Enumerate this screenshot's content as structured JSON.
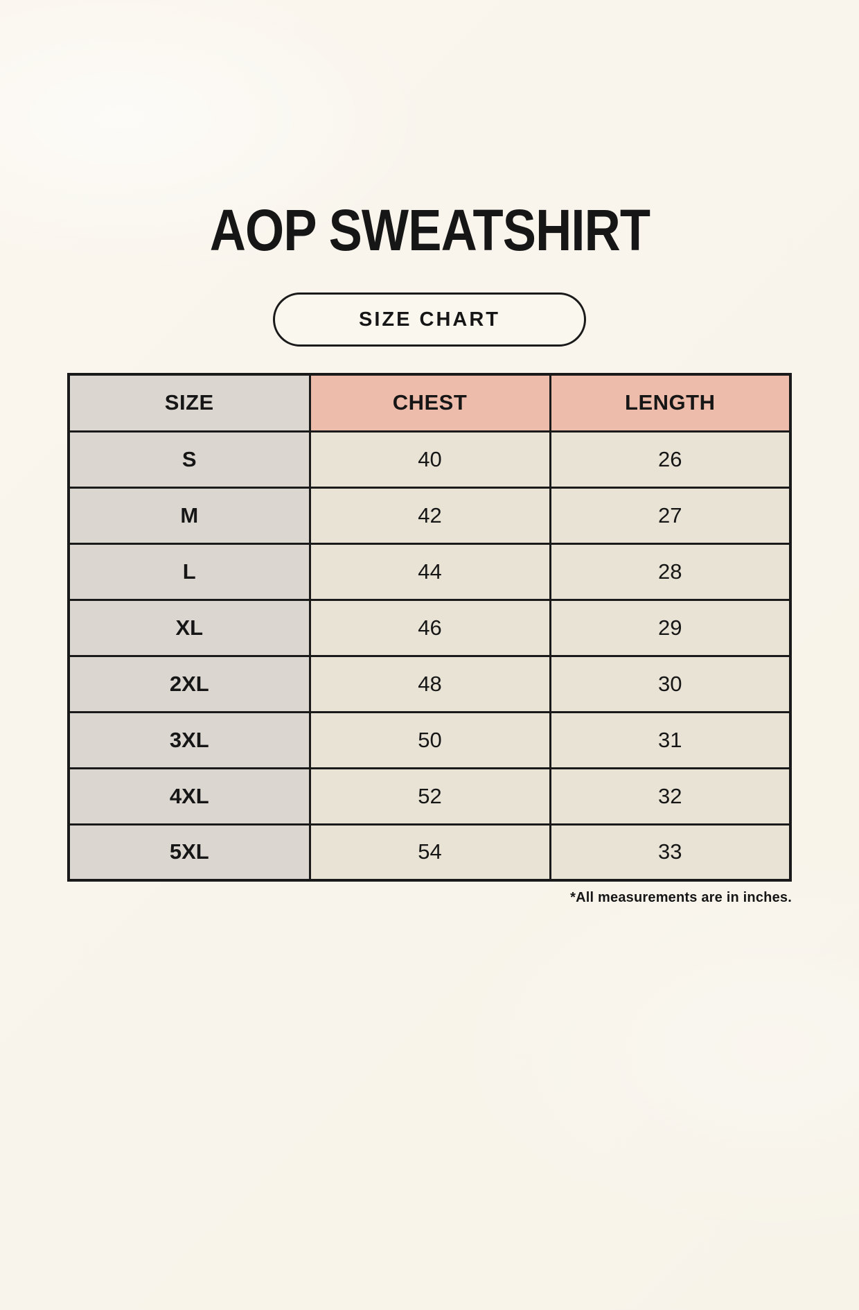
{
  "page": {
    "title": "AOP SWEATSHIRT",
    "badge_label": "SIZE CHART",
    "footnote": "*All measurements are in inches."
  },
  "chart_data": {
    "type": "table",
    "title": "AOP SWEATSHIRT",
    "subtitle": "SIZE CHART",
    "columns": [
      "SIZE",
      "CHEST",
      "LENGTH"
    ],
    "rows": [
      {
        "size": "S",
        "chest": 40,
        "length": 26
      },
      {
        "size": "M",
        "chest": 42,
        "length": 27
      },
      {
        "size": "L",
        "chest": 44,
        "length": 28
      },
      {
        "size": "XL",
        "chest": 46,
        "length": 29
      },
      {
        "size": "2XL",
        "chest": 48,
        "length": 30
      },
      {
        "size": "3XL",
        "chest": 50,
        "length": 31
      },
      {
        "size": "4XL",
        "chest": 52,
        "length": 32
      },
      {
        "size": "5XL",
        "chest": 54,
        "length": 33
      }
    ],
    "units": "inches",
    "footnote": "*All measurements are in inches."
  },
  "colors": {
    "background": "#f8f5ec",
    "text": "#161616",
    "table_border": "#1a1a1a",
    "size_column_bg": "#dcd6d0",
    "header_accent_bg": "#eebcab",
    "value_cell_bg": "#e9e3d6",
    "badge_bg": "#faf7ef"
  }
}
